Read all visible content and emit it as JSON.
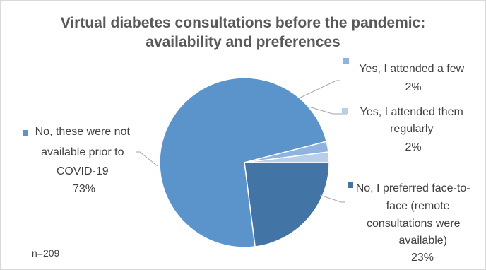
{
  "chart_data": {
    "type": "pie",
    "title": [
      "Virtual diabetes consultations before the pandemic:",
      "availability and preferences"
    ],
    "slices": [
      {
        "label": [
          "No, these were not",
          "available prior to",
          "COVID-19"
        ],
        "value": 73,
        "value_text": "73%",
        "color": "#5b93cb"
      },
      {
        "label": [
          "Yes, I attended a few"
        ],
        "value": 2,
        "value_text": "2%",
        "color": "#8fb3de"
      },
      {
        "label": [
          "Yes, I attended them",
          "regularly"
        ],
        "value": 2,
        "value_text": "2%",
        "color": "#b8cfea"
      },
      {
        "label": [
          "No, I preferred face-to-",
          "face (remote",
          "consultations were",
          "available)"
        ],
        "value": 23,
        "value_text": "23%",
        "color": "#4274a5"
      }
    ],
    "legend_markers": true
  },
  "footnote": "n=209"
}
